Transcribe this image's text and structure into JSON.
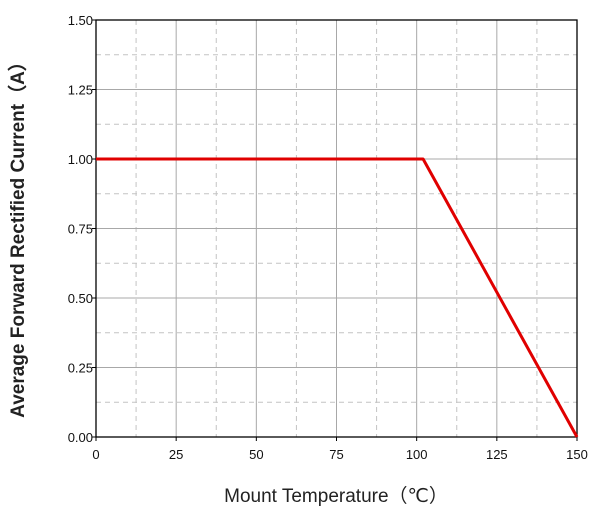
{
  "chart_data": {
    "type": "line",
    "title": "",
    "xlabel": "Mount Temperature（℃）",
    "ylabel": "Average Forward Rectified Current（A）",
    "xlim": [
      0,
      150
    ],
    "ylim": [
      0,
      1.5
    ],
    "x_ticks": [
      "0",
      "25",
      "50",
      "75",
      "100",
      "125",
      "150"
    ],
    "y_ticks": [
      "0.00",
      "0.25",
      "0.50",
      "0.75",
      "1.00",
      "1.25",
      "1.50"
    ],
    "grid": true,
    "series": [
      {
        "color": "#e00000",
        "x": [
          0,
          102,
          150
        ],
        "y": [
          1.0,
          1.0,
          0.0
        ]
      }
    ]
  }
}
